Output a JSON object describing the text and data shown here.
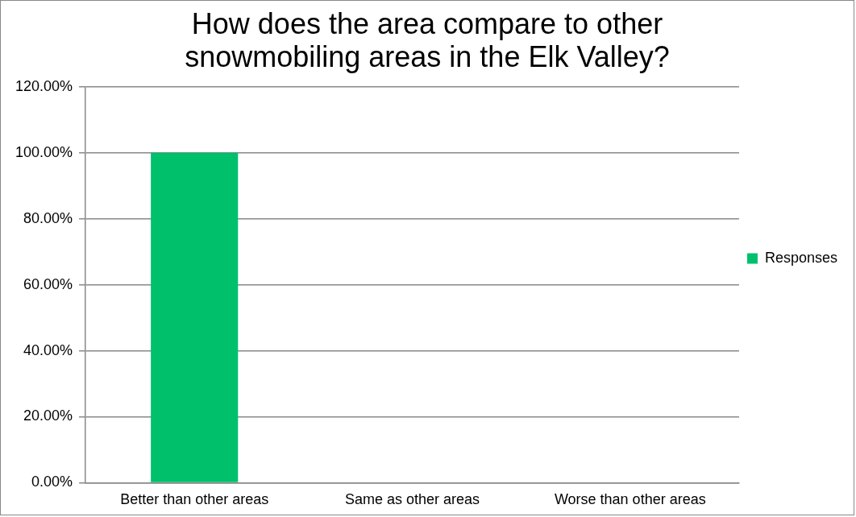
{
  "chart_data": {
    "type": "bar",
    "title": "How does the area compare to other snowmobiling areas in the Elk Valley?",
    "categories": [
      "Better than other areas",
      "Same as other areas",
      "Worse than other areas"
    ],
    "series": [
      {
        "name": "Responses",
        "color": "#00c06b",
        "values": [
          100,
          0,
          0
        ]
      }
    ],
    "ylim": [
      0,
      120
    ],
    "yticks": [
      {
        "value": 0,
        "label": "0.00%"
      },
      {
        "value": 20,
        "label": "20.00%"
      },
      {
        "value": 40,
        "label": "40.00%"
      },
      {
        "value": 60,
        "label": "60.00%"
      },
      {
        "value": 80,
        "label": "80.00%"
      },
      {
        "value": 100,
        "label": "100.00%"
      },
      {
        "value": 120,
        "label": "120.00%"
      }
    ],
    "grid": "y",
    "legend": "right"
  }
}
